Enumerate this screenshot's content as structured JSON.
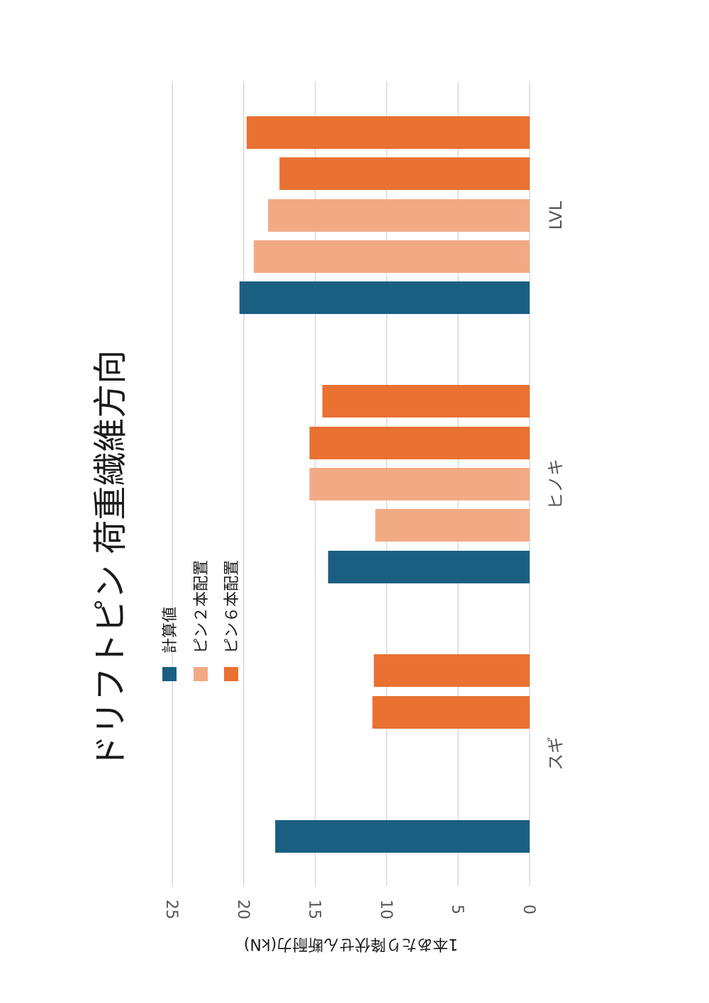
{
  "chart_data": {
    "type": "bar",
    "orientation": "rotated-90-cw",
    "title": "ドリフトピン 荷重繊維方向",
    "ylabel": "1本あたり降伏せん断耐力(kN)",
    "xlabel": "",
    "ylim": [
      0,
      25
    ],
    "ticks": [
      0,
      5,
      10,
      15,
      20,
      25
    ],
    "grid": true,
    "legend_position": "top",
    "categories": [
      "スギ",
      "ヒノキ",
      "LVL"
    ],
    "groups": [
      {
        "category": "スギ",
        "bars": [
          {
            "series": "計算値",
            "value": 17.8
          },
          {
            "series": "ピン2本配置",
            "value": null
          },
          {
            "series": "ピン2本配置",
            "value": null
          },
          {
            "series": "ピン6本配置",
            "value": 11.0
          },
          {
            "series": "ピン6本配置",
            "value": 10.9
          }
        ]
      },
      {
        "category": "ヒノキ",
        "bars": [
          {
            "series": "計算値",
            "value": 14.1
          },
          {
            "series": "ピン2本配置",
            "value": 10.8
          },
          {
            "series": "ピン2本配置",
            "value": 15.4
          },
          {
            "series": "ピン6本配置",
            "value": 15.4
          },
          {
            "series": "ピン6本配置",
            "value": 14.5
          }
        ]
      },
      {
        "category": "LVL",
        "bars": [
          {
            "series": "計算値",
            "value": 20.3
          },
          {
            "series": "ピン2本配置",
            "value": 19.3
          },
          {
            "series": "ピン2本配置",
            "value": 18.3
          },
          {
            "series": "ピン6本配置",
            "value": 17.5
          },
          {
            "series": "ピン6本配置",
            "value": 19.8
          }
        ]
      }
    ],
    "series": [
      {
        "name": "計算値",
        "color": "#1a5f82"
      },
      {
        "name": "ピン２本配置",
        "color": "#f2aa84"
      },
      {
        "name": "ピン６本配置",
        "color": "#e97132"
      }
    ]
  }
}
